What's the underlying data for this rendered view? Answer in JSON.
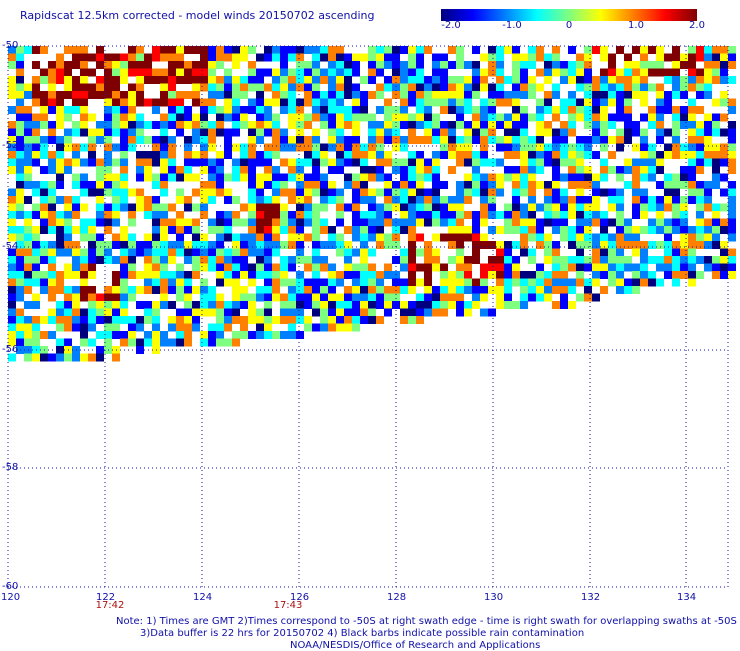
{
  "title": "Rapidscat 12.5km corrected - model winds 20150702 ascending",
  "colorbar": {
    "ticks": [
      "-2.0",
      "-1.0",
      "0",
      "1.0",
      "2.0"
    ],
    "range": [
      -2.0,
      2.0
    ],
    "colors": [
      "#00007f",
      "#0000ff",
      "#007fff",
      "#00ffff",
      "#7fff7f",
      "#ffff00",
      "#ff7f00",
      "#ff0000",
      "#7f0000"
    ]
  },
  "map": {
    "lon_labels": [
      "120",
      "122",
      "124",
      "126",
      "128",
      "130",
      "132",
      "134"
    ],
    "lat_labels": [
      "-50",
      "-52",
      "-54",
      "-56",
      "-58",
      "-60"
    ],
    "time_labels": [
      "17:42",
      "17:43"
    ]
  },
  "notes": {
    "line1": "Note: 1) Times are GMT 2)Times correspond to -50S at right swath edge - time is right swath for overlapping swaths at -50S",
    "line2": "3)Data buffer is 22 hrs for 20150702 4) Black barbs indicate possible rain contamination",
    "line3": "NOAA/NESDIS/Office of Research and Applications"
  }
}
